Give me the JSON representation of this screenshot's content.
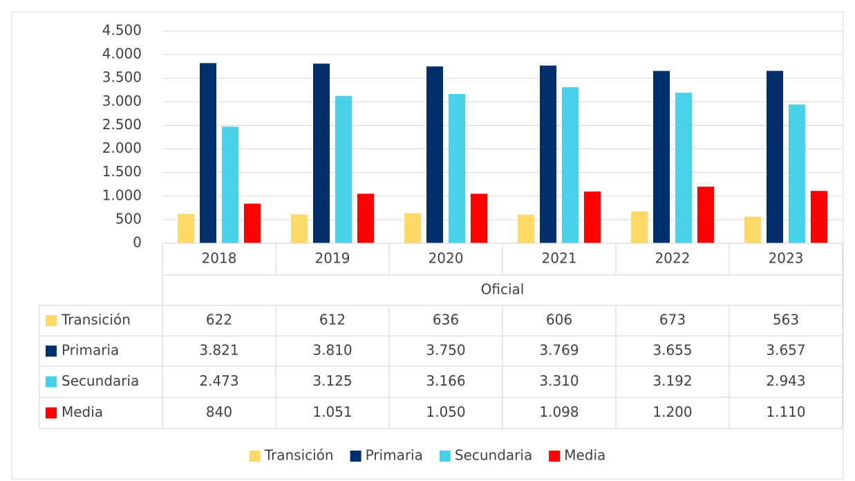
{
  "chart_data": {
    "type": "bar",
    "categories": [
      "2018",
      "2019",
      "2020",
      "2021",
      "2022",
      "2023"
    ],
    "group_label": "Oficial",
    "series": [
      {
        "name": "Transición",
        "color": "#ffd966",
        "values": [
          622,
          612,
          636,
          606,
          673,
          563
        ],
        "value_labels": [
          "622",
          "612",
          "636",
          "606",
          "673",
          "563"
        ]
      },
      {
        "name": "Primaria",
        "color": "#002f6c",
        "values": [
          3821,
          3810,
          3750,
          3769,
          3655,
          3657
        ],
        "value_labels": [
          "3.821",
          "3.810",
          "3.750",
          "3.769",
          "3.655",
          "3.657"
        ]
      },
      {
        "name": "Secundaria",
        "color": "#48d1e8",
        "values": [
          2473,
          3125,
          3166,
          3310,
          3192,
          2943
        ],
        "value_labels": [
          "2.473",
          "3.125",
          "3.166",
          "3.310",
          "3.192",
          "2.943"
        ]
      },
      {
        "name": "Media",
        "color": "#ff0000",
        "values": [
          840,
          1051,
          1050,
          1098,
          1200,
          1110
        ],
        "value_labels": [
          "840",
          "1.051",
          "1.050",
          "1.098",
          "1.200",
          "1.110"
        ]
      }
    ],
    "ylim": [
      0,
      4500
    ],
    "yticks": [
      0,
      500,
      {
        "value": 1000,
        "label": "1.000"
      },
      {
        "value": 1500,
        "label": "1.500"
      },
      {
        "value": 2000,
        "label": "2.000"
      },
      {
        "value": 2500,
        "label": "2.500"
      },
      {
        "value": 3000,
        "label": "3.000"
      },
      {
        "value": 3500,
        "label": "3.500"
      },
      {
        "value": 4000,
        "label": "4.000"
      },
      {
        "value": 4500,
        "label": "4.500"
      }
    ],
    "grid": true,
    "legend": "bottom"
  }
}
